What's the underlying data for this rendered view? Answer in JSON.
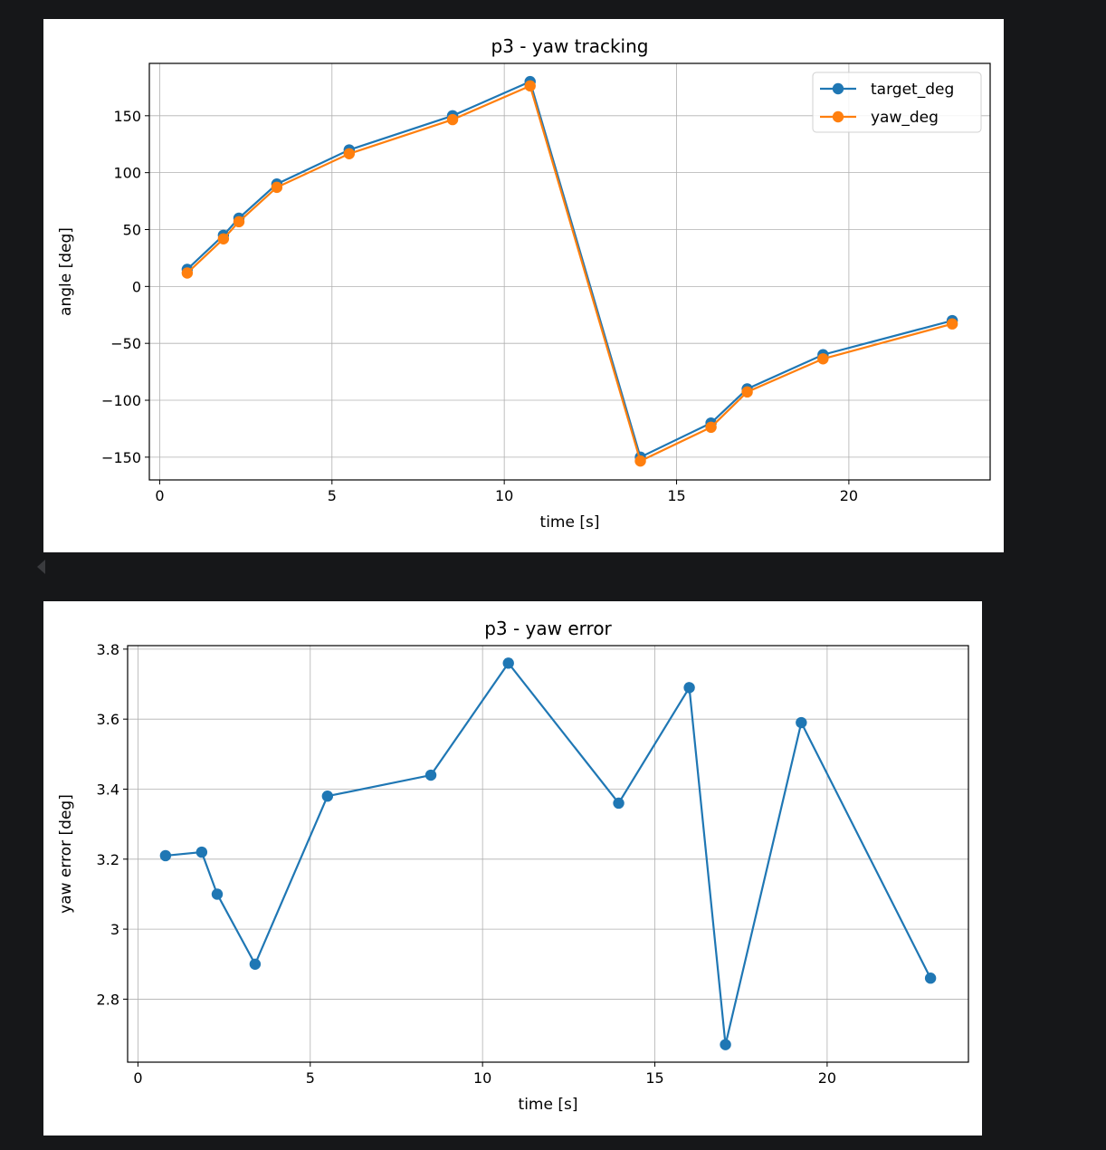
{
  "chart_data": [
    {
      "type": "line",
      "title": "p3 - yaw tracking",
      "xlabel": "time [s]",
      "ylabel": "angle [deg]",
      "xlim": [
        -0.3,
        24.1
      ],
      "ylim": [
        -170,
        196
      ],
      "xticks": [
        0,
        5,
        10,
        15,
        20
      ],
      "yticks": [
        -150,
        -100,
        -50,
        0,
        50,
        100,
        150
      ],
      "grid": true,
      "legend": "top-right",
      "x": [
        0.8,
        1.85,
        2.3,
        3.4,
        5.5,
        8.5,
        10.75,
        13.95,
        16.0,
        17.05,
        19.25,
        23.0
      ],
      "series": [
        {
          "name": "target_deg",
          "color": "#1f77b4",
          "values": [
            15,
            45,
            60,
            90,
            120,
            150,
            180,
            -150,
            -120,
            -90,
            -60,
            -30
          ]
        },
        {
          "name": "yaw_deg",
          "color": "#ff7f0e",
          "values": [
            11.8,
            41.8,
            56.9,
            87.1,
            116.6,
            146.6,
            176.2,
            -153.4,
            -123.7,
            -92.7,
            -63.6,
            -32.9
          ]
        }
      ]
    },
    {
      "type": "line",
      "title": "p3 - yaw error",
      "xlabel": "time [s]",
      "ylabel": "yaw error [deg]",
      "xlim": [
        -0.3,
        24.1
      ],
      "ylim": [
        2.62,
        3.81
      ],
      "xticks": [
        0,
        5,
        10,
        15,
        20
      ],
      "yticks": [
        2.8,
        3.0,
        3.2,
        3.4,
        3.6,
        3.8
      ],
      "grid": true,
      "x": [
        0.8,
        1.85,
        2.3,
        3.4,
        5.5,
        8.5,
        10.75,
        13.95,
        16.0,
        17.05,
        19.25,
        23.0
      ],
      "series": [
        {
          "color": "#1f77b4",
          "values": [
            3.21,
            3.22,
            3.1,
            2.9,
            3.38,
            3.44,
            3.76,
            3.36,
            3.69,
            2.67,
            3.59,
            2.86
          ]
        }
      ]
    }
  ]
}
